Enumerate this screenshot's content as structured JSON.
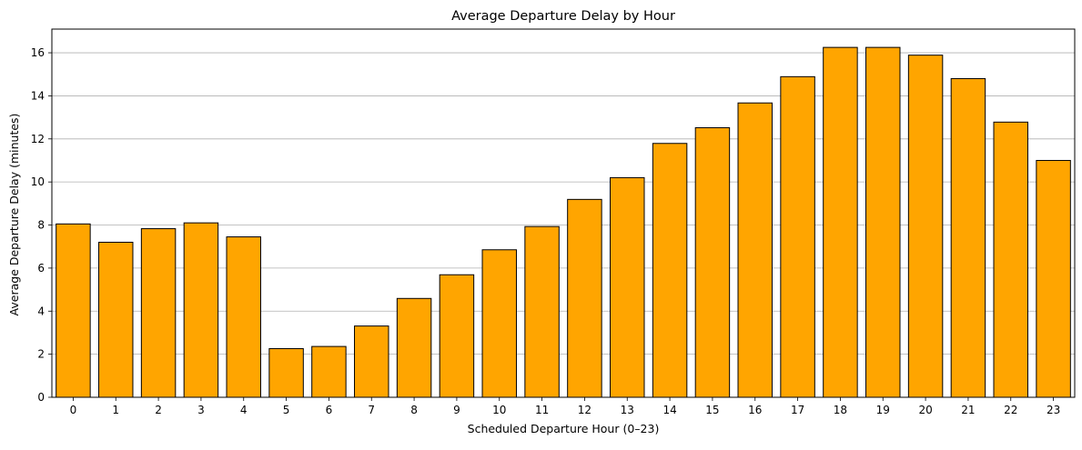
{
  "chart_data": {
    "type": "bar",
    "title": "Average Departure Delay by Hour",
    "xlabel": "Scheduled Departure Hour (0–23)",
    "ylabel": "Average Departure Delay (minutes)",
    "categories": [
      "0",
      "1",
      "2",
      "3",
      "4",
      "5",
      "6",
      "7",
      "8",
      "9",
      "10",
      "11",
      "12",
      "13",
      "14",
      "15",
      "16",
      "17",
      "18",
      "19",
      "20",
      "21",
      "22",
      "23"
    ],
    "values": [
      8.05,
      7.2,
      7.83,
      8.1,
      7.45,
      2.26,
      2.36,
      3.31,
      4.59,
      5.69,
      6.85,
      7.93,
      9.19,
      10.2,
      11.79,
      12.52,
      13.67,
      14.89,
      16.25,
      16.25,
      15.89,
      14.8,
      12.78,
      11.0
    ],
    "ylim": [
      0,
      17.1
    ],
    "yticks": [
      0,
      2,
      4,
      6,
      8,
      10,
      12,
      14,
      16
    ],
    "grid": "y",
    "bar_color": "#ffa500",
    "edge_color": "#000000"
  }
}
